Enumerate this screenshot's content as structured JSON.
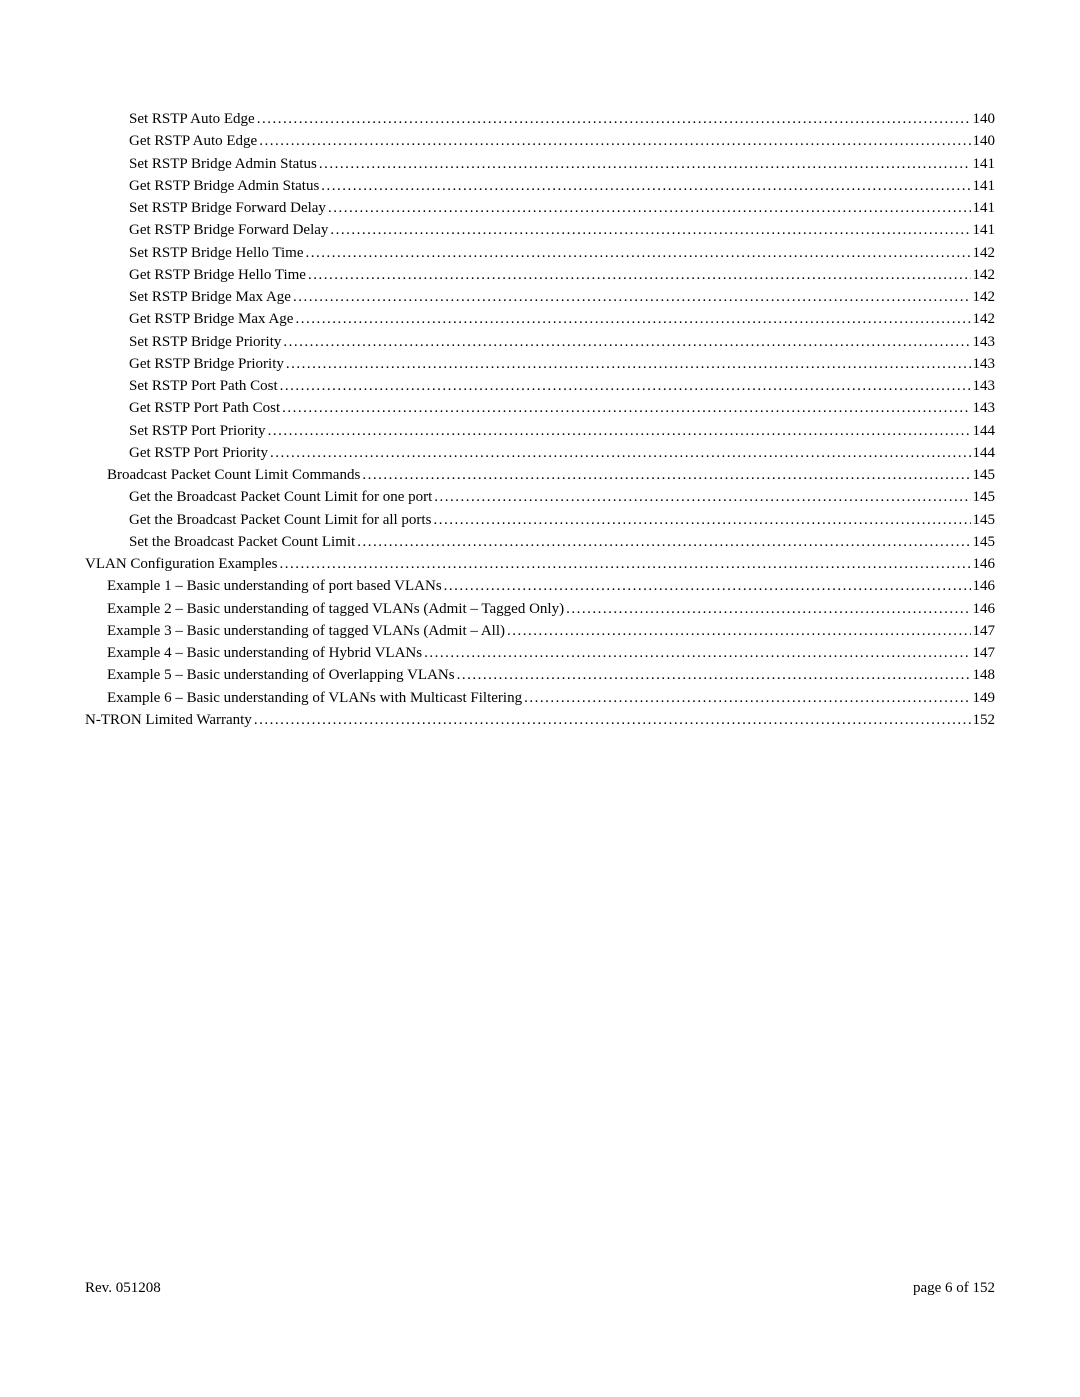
{
  "toc": {
    "entries": [
      {
        "level": 2,
        "title": "Set RSTP Auto Edge",
        "page": "140"
      },
      {
        "level": 2,
        "title": "Get RSTP Auto Edge",
        "page": "140"
      },
      {
        "level": 2,
        "title": "Set RSTP Bridge Admin Status",
        "page": "141"
      },
      {
        "level": 2,
        "title": "Get RSTP Bridge Admin Status",
        "page": "141"
      },
      {
        "level": 2,
        "title": "Set RSTP Bridge Forward Delay",
        "page": "141"
      },
      {
        "level": 2,
        "title": "Get RSTP Bridge Forward Delay",
        "page": "141"
      },
      {
        "level": 2,
        "title": "Set RSTP Bridge Hello Time",
        "page": "142"
      },
      {
        "level": 2,
        "title": "Get RSTP Bridge Hello Time",
        "page": "142"
      },
      {
        "level": 2,
        "title": "Set RSTP Bridge Max Age",
        "page": "142"
      },
      {
        "level": 2,
        "title": "Get RSTP Bridge Max Age",
        "page": "142"
      },
      {
        "level": 2,
        "title": "Set RSTP Bridge Priority",
        "page": "143"
      },
      {
        "level": 2,
        "title": "Get RSTP Bridge Priority",
        "page": "143"
      },
      {
        "level": 2,
        "title": "Set RSTP Port Path Cost",
        "page": "143"
      },
      {
        "level": 2,
        "title": "Get RSTP Port Path Cost",
        "page": "143"
      },
      {
        "level": 2,
        "title": "Set RSTP Port Priority",
        "page": "144"
      },
      {
        "level": 2,
        "title": "Get RSTP Port Priority",
        "page": "144"
      },
      {
        "level": 1,
        "title": "Broadcast Packet Count Limit Commands",
        "page": "145"
      },
      {
        "level": 2,
        "title": "Get the Broadcast Packet Count Limit for one port",
        "page": "145"
      },
      {
        "level": 2,
        "title": "Get the Broadcast Packet Count Limit for all ports",
        "page": "145"
      },
      {
        "level": 2,
        "title": "Set the Broadcast Packet Count Limit",
        "page": "145"
      },
      {
        "level": 0,
        "title": "VLAN Configuration Examples",
        "page": "146"
      },
      {
        "level": 1,
        "title": "Example 1 – Basic understanding of port based VLANs",
        "page": "146"
      },
      {
        "level": 1,
        "title": "Example 2 – Basic understanding of tagged VLANs (Admit – Tagged Only)",
        "page": "146"
      },
      {
        "level": 1,
        "title": "Example 3 – Basic understanding of tagged VLANs (Admit – All)",
        "page": "147"
      },
      {
        "level": 1,
        "title": "Example 4 – Basic understanding of Hybrid VLANs",
        "page": "147"
      },
      {
        "level": 1,
        "title": "Example 5 – Basic understanding of Overlapping VLANs",
        "page": "148"
      },
      {
        "level": 1,
        "title": "Example 6 – Basic understanding of VLANs with Multicast Filtering",
        "page": "149"
      },
      {
        "level": 0,
        "title": "N-TRON Limited Warranty",
        "page": "152"
      }
    ]
  },
  "footer": {
    "left": "Rev.  051208",
    "right": "page 6 of 152"
  }
}
